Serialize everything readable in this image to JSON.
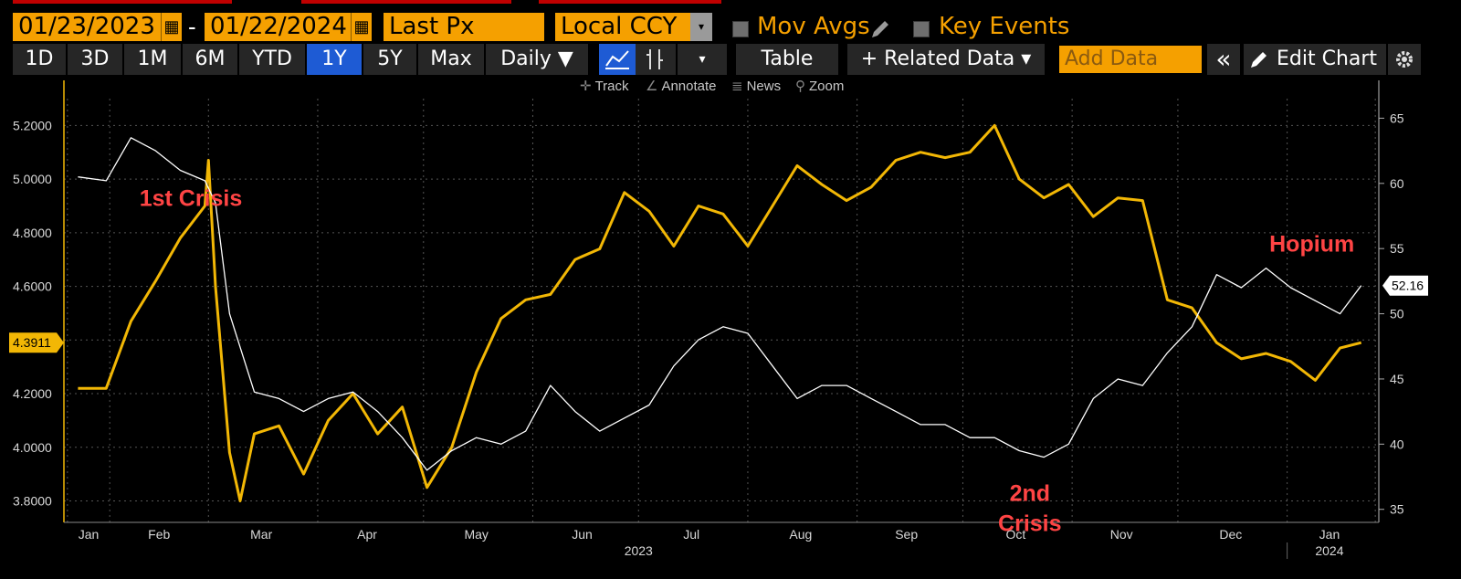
{
  "toolbar": {
    "start_date": "01/23/2023",
    "end_date": "01/22/2024",
    "date_separator": "-",
    "field": "Last Px",
    "currency": "Local CCY",
    "mov_avgs": "Mov Avgs",
    "key_events": "Key Events",
    "periods": [
      "1D",
      "3D",
      "1M",
      "6M",
      "YTD",
      "1Y",
      "5Y",
      "Max"
    ],
    "active_period": "1Y",
    "frequency": "Daily ▼",
    "table": "Table",
    "related_data": "+ Related Data ▾",
    "add_data_placeholder": "Add Data",
    "edit_chart": "Edit Chart",
    "collapse": "«",
    "dropdown_arrow": "▾"
  },
  "tools": {
    "track": "Track",
    "annotate": "Annotate",
    "news": "News",
    "zoom": "Zoom"
  },
  "icons": [
    "calendar-icon",
    "pencil-icon",
    "line-chart-icon",
    "candlestick-icon",
    "settings-gear-icon",
    "crosshair-icon"
  ],
  "colors": {
    "accent_orange": "#f5a000",
    "series_gold": "#f2b705",
    "series_white": "#ffffff",
    "annotation_red": "#ff4444",
    "active_button": "#1e5bd4"
  },
  "chart_data": {
    "type": "line",
    "x_axis": {
      "months": [
        "Jan",
        "Feb",
        "Mar",
        "Apr",
        "May",
        "Jun",
        "Jul",
        "Aug",
        "Sep",
        "Oct",
        "Nov",
        "Dec",
        "Jan"
      ],
      "year_labels": [
        "2023",
        "2024"
      ]
    },
    "left_axis": {
      "ticks": [
        "5.2000",
        "5.0000",
        "4.8000",
        "4.6000",
        "4.4000",
        "4.2000",
        "4.0000",
        "3.8000"
      ],
      "ylim": [
        3.72,
        5.3
      ],
      "last_value_label": "4.3911"
    },
    "right_axis": {
      "ticks": [
        "65",
        "60",
        "55",
        "50",
        "45",
        "40",
        "35"
      ],
      "ylim": [
        34,
        66.5
      ],
      "last_value_label": "52.16"
    },
    "series": [
      {
        "axis": "left",
        "color": "#f2b705",
        "x": [
          "2023-01-23",
          "2023-01-31",
          "2023-02-07",
          "2023-02-14",
          "2023-02-21",
          "2023-02-28",
          "2023-03-01",
          "2023-03-03",
          "2023-03-07",
          "2023-03-10",
          "2023-03-14",
          "2023-03-21",
          "2023-03-28",
          "2023-04-04",
          "2023-04-11",
          "2023-04-18",
          "2023-04-25",
          "2023-05-02",
          "2023-05-09",
          "2023-05-16",
          "2023-05-23",
          "2023-05-30",
          "2023-06-06",
          "2023-06-13",
          "2023-06-20",
          "2023-06-27",
          "2023-07-04",
          "2023-07-11",
          "2023-07-18",
          "2023-07-25",
          "2023-08-01",
          "2023-08-08",
          "2023-08-15",
          "2023-08-22",
          "2023-08-29",
          "2023-09-05",
          "2023-09-12",
          "2023-09-19",
          "2023-09-26",
          "2023-10-03",
          "2023-10-10",
          "2023-10-17",
          "2023-10-24",
          "2023-10-31",
          "2023-11-07",
          "2023-11-14",
          "2023-11-21",
          "2023-11-28",
          "2023-12-05",
          "2023-12-12",
          "2023-12-19",
          "2023-12-26",
          "2024-01-02",
          "2024-01-09",
          "2024-01-16",
          "2024-01-22"
        ],
        "values": [
          4.22,
          4.22,
          4.47,
          4.62,
          4.78,
          4.9,
          5.07,
          4.6,
          3.98,
          3.8,
          4.05,
          4.08,
          3.9,
          4.1,
          4.2,
          4.05,
          4.15,
          3.85,
          4.0,
          4.28,
          4.48,
          4.55,
          4.57,
          4.7,
          4.74,
          4.95,
          4.88,
          4.75,
          4.9,
          4.87,
          4.75,
          4.9,
          5.05,
          4.98,
          4.92,
          4.97,
          5.07,
          5.1,
          5.08,
          5.1,
          5.2,
          5.0,
          4.93,
          4.98,
          4.86,
          4.93,
          4.92,
          4.55,
          4.52,
          4.39,
          4.33,
          4.35,
          4.32,
          4.25,
          4.37,
          4.39
        ]
      },
      {
        "axis": "right",
        "color": "#ffffff",
        "x": [
          "2023-01-23",
          "2023-01-31",
          "2023-02-07",
          "2023-02-14",
          "2023-02-21",
          "2023-02-28",
          "2023-03-03",
          "2023-03-07",
          "2023-03-14",
          "2023-03-21",
          "2023-03-28",
          "2023-04-04",
          "2023-04-11",
          "2023-04-18",
          "2023-04-25",
          "2023-05-02",
          "2023-05-09",
          "2023-05-16",
          "2023-05-23",
          "2023-05-30",
          "2023-06-06",
          "2023-06-13",
          "2023-06-20",
          "2023-06-27",
          "2023-07-04",
          "2023-07-11",
          "2023-07-18",
          "2023-07-25",
          "2023-08-01",
          "2023-08-08",
          "2023-08-15",
          "2023-08-22",
          "2023-08-29",
          "2023-09-05",
          "2023-09-12",
          "2023-09-19",
          "2023-09-26",
          "2023-10-03",
          "2023-10-10",
          "2023-10-17",
          "2023-10-24",
          "2023-10-31",
          "2023-11-07",
          "2023-11-14",
          "2023-11-21",
          "2023-11-28",
          "2023-12-05",
          "2023-12-12",
          "2023-12-19",
          "2023-12-26",
          "2024-01-02",
          "2024-01-09",
          "2024-01-16",
          "2024-01-22"
        ],
        "values": [
          60.5,
          60.2,
          63.5,
          62.5,
          61.0,
          60.2,
          58.5,
          50.0,
          44.0,
          43.5,
          42.5,
          43.5,
          44.0,
          42.5,
          40.5,
          38.0,
          39.5,
          40.5,
          40.0,
          41.0,
          44.5,
          42.5,
          41.0,
          42.0,
          43.0,
          46.0,
          48.0,
          49.0,
          48.5,
          46.0,
          43.5,
          44.5,
          44.5,
          43.5,
          42.5,
          41.5,
          41.5,
          40.5,
          40.5,
          39.5,
          39.0,
          40.0,
          43.5,
          45.0,
          44.5,
          47.0,
          49.0,
          53.0,
          52.0,
          53.5,
          52.0,
          51.0,
          50.0,
          52.16
        ]
      }
    ],
    "annotations": [
      {
        "text": "1st Crisis",
        "lines": [
          "1st Crisis"
        ],
        "x": "2023-02-24",
        "axis_value": 4.9
      },
      {
        "text": "2nd Crisis",
        "lines": [
          "2nd",
          "Crisis"
        ],
        "x": "2023-10-20",
        "axis_value": 3.8
      },
      {
        "text": "Hopium",
        "lines": [
          "Hopium"
        ],
        "x": "2024-01-08",
        "axis_value": 4.73
      }
    ],
    "grid": true
  }
}
